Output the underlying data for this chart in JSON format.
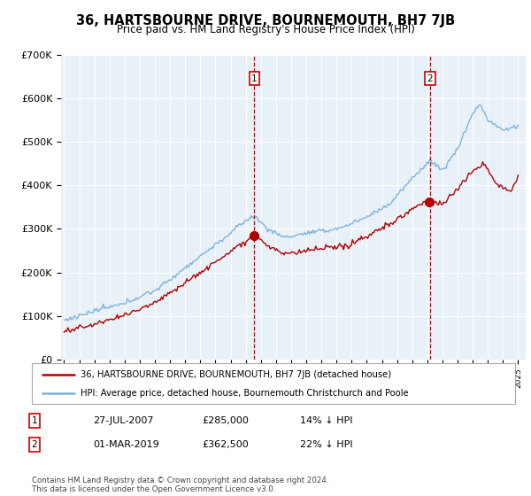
{
  "title": "36, HARTSBOURNE DRIVE, BOURNEMOUTH, BH7 7JB",
  "subtitle": "Price paid vs. HM Land Registry's House Price Index (HPI)",
  "ylim": [
    0,
    700000
  ],
  "yticks": [
    0,
    100000,
    200000,
    300000,
    400000,
    500000,
    600000,
    700000
  ],
  "ytick_labels": [
    "£0",
    "£100K",
    "£200K",
    "£300K",
    "£400K",
    "£500K",
    "£600K",
    "£700K"
  ],
  "hpi_color": "#7fb3d9",
  "price_color": "#b30000",
  "vline_color": "#cc0000",
  "marker1_x": 2007.575,
  "marker1_price": 285000,
  "marker2_x": 2019.167,
  "marker2_price": 362500,
  "legend_label_price": "36, HARTSBOURNE DRIVE, BOURNEMOUTH, BH7 7JB (detached house)",
  "legend_label_hpi": "HPI: Average price, detached house, Bournemouth Christchurch and Poole",
  "table_row1": [
    "1",
    "27-JUL-2007",
    "£285,000",
    "14% ↓ HPI"
  ],
  "table_row2": [
    "2",
    "01-MAR-2019",
    "£362,500",
    "22% ↓ HPI"
  ],
  "footer": "Contains HM Land Registry data © Crown copyright and database right 2024.\nThis data is licensed under the Open Government Licence v3.0.",
  "background_color": "#e8f0f8"
}
